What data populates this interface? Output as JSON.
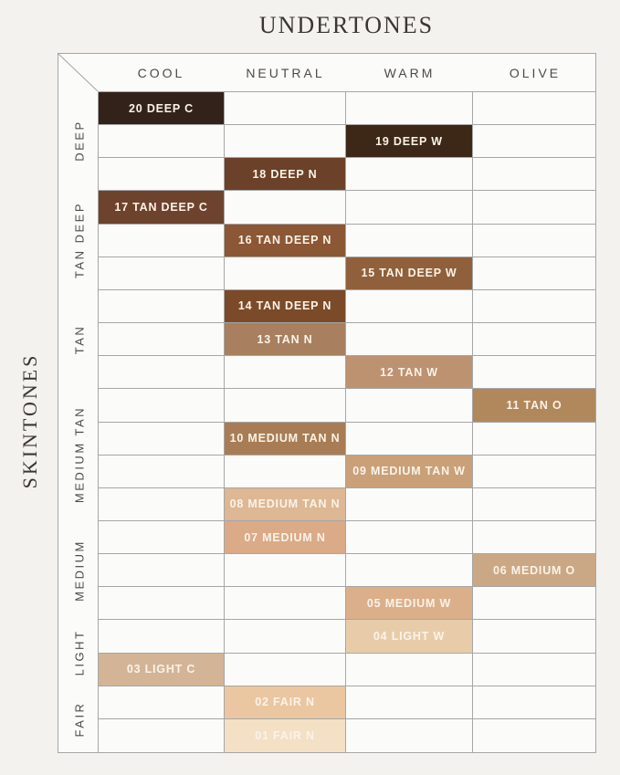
{
  "colors": {
    "grid_line": "#a6a6a6",
    "cell_bg": "#fbfbf9",
    "page_bg": "#f3f2ef",
    "swatch_text": "#faf3e8",
    "header_text": "#4e4a46",
    "title_text": "#3a3631"
  },
  "chart_data": {
    "type": "heatmap",
    "title": "UNDERTONES",
    "ylabel": "SKINTONES",
    "x_categories": [
      "COOL",
      "NEUTRAL",
      "WARM",
      "OLIVE"
    ],
    "y_groups": [
      {
        "label": "DEEP",
        "rows": 3
      },
      {
        "label": "TAN DEEP",
        "rows": 3
      },
      {
        "label": "TAN",
        "rows": 3
      },
      {
        "label": "MEDIUM TAN",
        "rows": 4
      },
      {
        "label": "MEDIUM",
        "rows": 3
      },
      {
        "label": "LIGHT",
        "rows": 2
      },
      {
        "label": "FAIR",
        "rows": 2
      }
    ],
    "shades": [
      {
        "row": 1,
        "label": "20 DEEP C",
        "undertone": "COOL",
        "skintone_group": "DEEP",
        "color": "#33221a"
      },
      {
        "row": 2,
        "label": "19 DEEP W",
        "undertone": "WARM",
        "skintone_group": "DEEP",
        "color": "#3d2817"
      },
      {
        "row": 3,
        "label": "18 DEEP N",
        "undertone": "NEUTRAL",
        "skintone_group": "DEEP",
        "color": "#6c4129"
      },
      {
        "row": 4,
        "label": "17 TAN DEEP C",
        "undertone": "COOL",
        "skintone_group": "TAN DEEP",
        "color": "#6d432e"
      },
      {
        "row": 5,
        "label": "16 TAN DEEP N",
        "undertone": "NEUTRAL",
        "skintone_group": "TAN DEEP",
        "color": "#8b5734"
      },
      {
        "row": 6,
        "label": "15 TAN DEEP W",
        "undertone": "WARM",
        "skintone_group": "TAN DEEP",
        "color": "#90603c"
      },
      {
        "row": 7,
        "label": "14 TAN DEEP N",
        "undertone": "NEUTRAL",
        "skintone_group": "TAN",
        "color": "#7b4a28"
      },
      {
        "row": 8,
        "label": "13 TAN N",
        "undertone": "NEUTRAL",
        "skintone_group": "TAN",
        "color": "#a8805f"
      },
      {
        "row": 9,
        "label": "12 TAN W",
        "undertone": "WARM",
        "skintone_group": "TAN",
        "color": "#bd9271"
      },
      {
        "row": 10,
        "label": "11 TAN O",
        "undertone": "OLIVE",
        "skintone_group": "MEDIUM TAN",
        "color": "#b1875c"
      },
      {
        "row": 11,
        "label": "10 MEDIUM TAN N",
        "undertone": "NEUTRAL",
        "skintone_group": "MEDIUM TAN",
        "color": "#a87d55"
      },
      {
        "row": 12,
        "label": "09 MEDIUM TAN W",
        "undertone": "WARM",
        "skintone_group": "MEDIUM TAN",
        "color": "#c9a078"
      },
      {
        "row": 13,
        "label": "08 MEDIUM TAN N",
        "undertone": "NEUTRAL",
        "skintone_group": "MEDIUM TAN",
        "color": "#deb794"
      },
      {
        "row": 14,
        "label": "07 MEDIUM N",
        "undertone": "NEUTRAL",
        "skintone_group": "MEDIUM",
        "color": "#dbaa87"
      },
      {
        "row": 15,
        "label": "06 MEDIUM O",
        "undertone": "OLIVE",
        "skintone_group": "MEDIUM",
        "color": "#cba885"
      },
      {
        "row": 16,
        "label": "05 MEDIUM W",
        "undertone": "WARM",
        "skintone_group": "MEDIUM",
        "color": "#dcaf8b"
      },
      {
        "row": 17,
        "label": "04 LIGHT W",
        "undertone": "WARM",
        "skintone_group": "LIGHT",
        "color": "#e8ccaa"
      },
      {
        "row": 18,
        "label": "03 LIGHT C",
        "undertone": "COOL",
        "skintone_group": "LIGHT",
        "color": "#d3b496"
      },
      {
        "row": 19,
        "label": "02 FAIR N",
        "undertone": "NEUTRAL",
        "skintone_group": "FAIR",
        "color": "#eac7a0"
      },
      {
        "row": 20,
        "label": "01 FAIR N",
        "undertone": "NEUTRAL",
        "skintone_group": "FAIR",
        "color": "#f3e0c5"
      }
    ]
  }
}
